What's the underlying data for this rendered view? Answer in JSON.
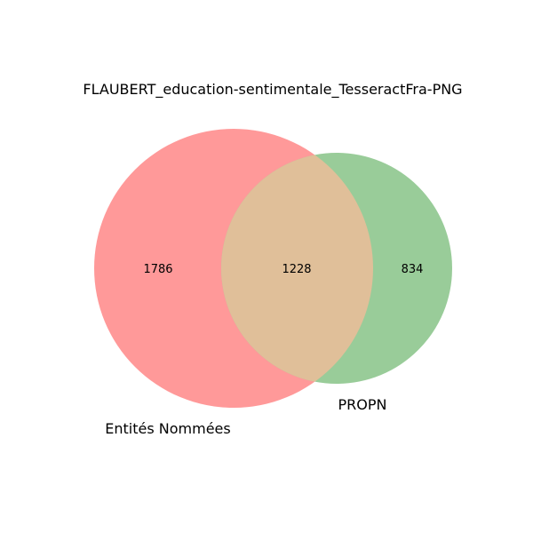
{
  "title": "FLAUBERT_education-sentimentale_TesseractFra-PNG",
  "sets": [
    {
      "name": "Entités Nommées",
      "color": "#ff9999"
    },
    {
      "name": "PROPN",
      "color": "#99cc99"
    }
  ],
  "overlap_color": "#e0bf99",
  "regions": {
    "only_a": "1786",
    "both": "1228",
    "only_b": "834"
  }
}
